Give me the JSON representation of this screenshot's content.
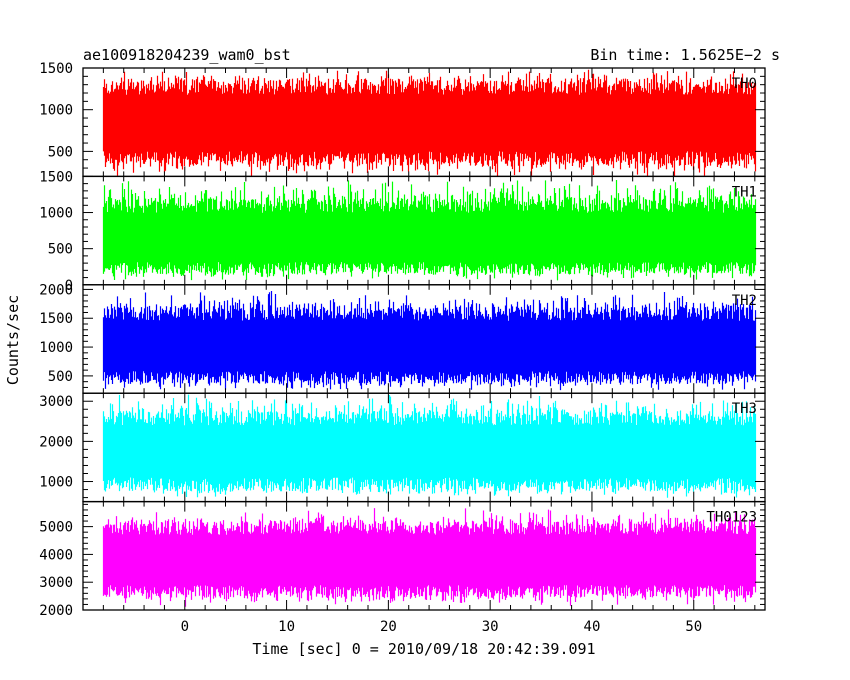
{
  "header": {
    "title": "ae100918204239_wam0_bst",
    "bin_time": "Bin time: 1.5625E−2 s"
  },
  "chart_data": {
    "type": "line",
    "xlabel": "Time [sec] 0 = 2010/09/18 20:42:39.091",
    "ylabel": "Counts/sec",
    "xlim": [
      -10,
      57
    ],
    "x_ticks": [
      0,
      10,
      20,
      30,
      40,
      50
    ],
    "x_range_data": [
      -8,
      56
    ],
    "grid": false,
    "legend": "none",
    "panels": [
      {
        "name": "TH0",
        "color": "#ff0000",
        "ylim": [
          200,
          1500
        ],
        "y_ticks": [
          500,
          1000,
          1500
        ],
        "band": {
          "typ_low": 330,
          "typ_high": 1370,
          "min": 170,
          "max": 1500,
          "median": 820
        }
      },
      {
        "name": "TH1",
        "color": "#00ff00",
        "ylim": [
          0,
          1500
        ],
        "y_ticks": [
          0,
          500,
          1000,
          1500
        ],
        "band": {
          "typ_low": 150,
          "typ_high": 1200,
          "min": 40,
          "max": 1500,
          "median": 620
        }
      },
      {
        "name": "TH2",
        "color": "#0000ff",
        "ylim": [
          200,
          2080
        ],
        "y_ticks": [
          500,
          1000,
          1500,
          2000
        ],
        "band": {
          "typ_low": 360,
          "typ_high": 1700,
          "min": 230,
          "max": 2000,
          "median": 1000
        }
      },
      {
        "name": "TH3",
        "color": "#00ffff",
        "ylim": [
          500,
          3200
        ],
        "y_ticks": [
          1000,
          2000,
          3000
        ],
        "band": {
          "typ_low": 750,
          "typ_high": 2750,
          "min": 550,
          "max": 3200,
          "median": 1750
        }
      },
      {
        "name": "TH0123",
        "color": "#ff00ff",
        "ylim": [
          2000,
          5900
        ],
        "y_ticks": [
          2000,
          3000,
          4000,
          5000
        ],
        "band": {
          "typ_low": 2450,
          "typ_high": 5200,
          "min": 2100,
          "max": 5700,
          "median": 3750
        }
      }
    ]
  }
}
